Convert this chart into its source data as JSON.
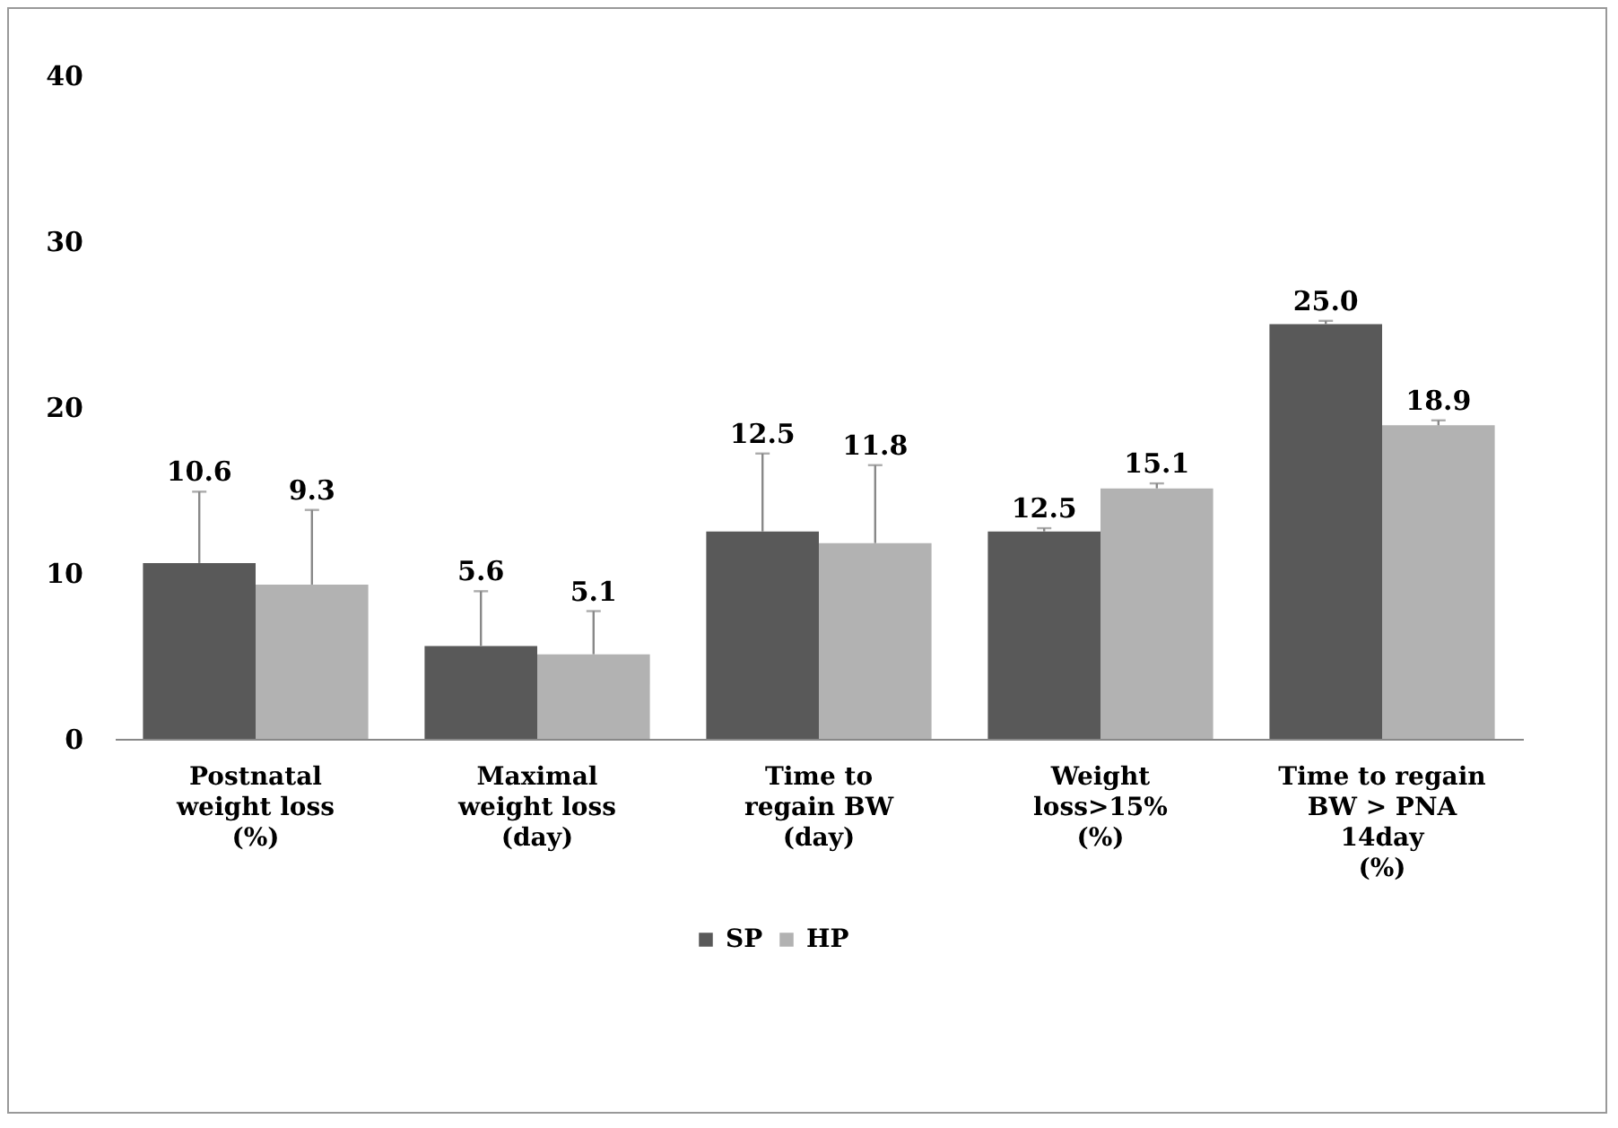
{
  "chart_data": {
    "type": "bar",
    "categories": [
      "Postnatal\nweight loss\n(%)",
      "Maximal\nweight loss\n(day)",
      "Time to\nregain BW\n(day)",
      "Weight\nloss>15%\n(%)",
      "Time to regain\nBW > PNA\n14day\n(%)"
    ],
    "series": [
      {
        "name": "SP",
        "color": "#595959",
        "values": [
          10.6,
          5.6,
          12.5,
          12.5,
          25.0
        ],
        "errors": [
          [
            10.6,
            14.9
          ],
          [
            5.6,
            8.9
          ],
          [
            12.5,
            17.2
          ],
          [
            12.5,
            12.7
          ],
          [
            25.0,
            25.2
          ]
        ],
        "value_labels": [
          "10.6",
          "5.6",
          "12.5",
          "12.5",
          "25.0"
        ]
      },
      {
        "name": "HP",
        "color": "#b2b2b2",
        "values": [
          9.3,
          5.1,
          11.8,
          15.1,
          18.9
        ],
        "errors": [
          [
            9.3,
            13.8
          ],
          [
            5.1,
            7.7
          ],
          [
            11.8,
            16.5
          ],
          [
            15.1,
            15.4
          ],
          [
            18.9,
            19.2
          ]
        ],
        "value_labels": [
          "9.3",
          "5.1",
          "11.8",
          "15.1",
          "18.9"
        ]
      }
    ],
    "ylim": [
      0,
      40
    ],
    "yticks": [
      0,
      10,
      20,
      30,
      40
    ],
    "grid": false,
    "legend": "bottom"
  }
}
